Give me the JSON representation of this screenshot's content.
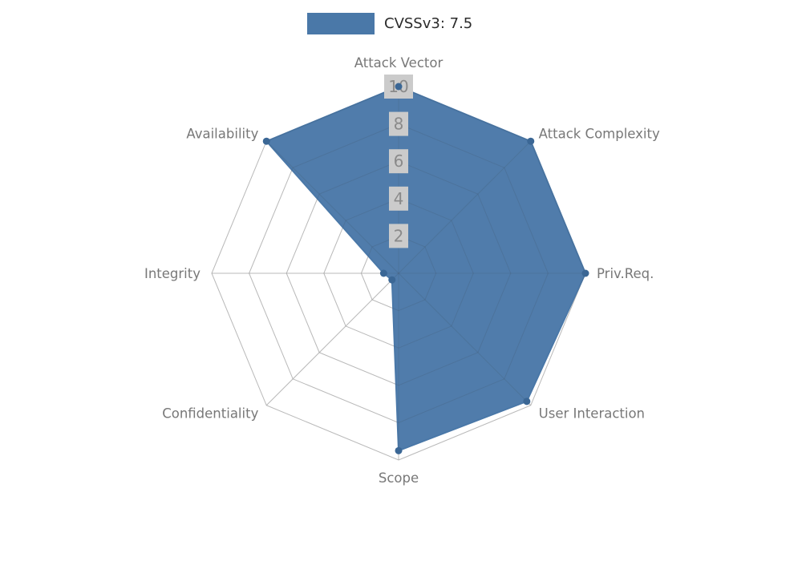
{
  "legend": {
    "label": "CVSSv3: 7.5"
  },
  "chart_data": {
    "type": "radar",
    "title": "",
    "categories": [
      "Attack Vector",
      "Attack Complexity",
      "Priv.Req.",
      "User Interaction",
      "Scope",
      "Confidentiality",
      "Integrity",
      "Availability"
    ],
    "series": [
      {
        "name": "CVSSv3: 7.5",
        "values": [
          10,
          10,
          10,
          9.7,
          9.5,
          0.5,
          0.8,
          10
        ]
      }
    ],
    "ticks": [
      2,
      4,
      6,
      8,
      10
    ],
    "rlim": [
      0,
      10
    ],
    "grid": true,
    "grid_shape": "polygon",
    "legend_position": "top-center",
    "colors": {
      "fill": "#4a78a8",
      "stroke": "#4a78a8",
      "marker": "#3b6795",
      "grid": "#cccccc",
      "grid_over": "#3c3c3c",
      "tick_box": "#cbcbcb",
      "tick_text": "#8a8a8a",
      "label_text": "#787878"
    }
  }
}
